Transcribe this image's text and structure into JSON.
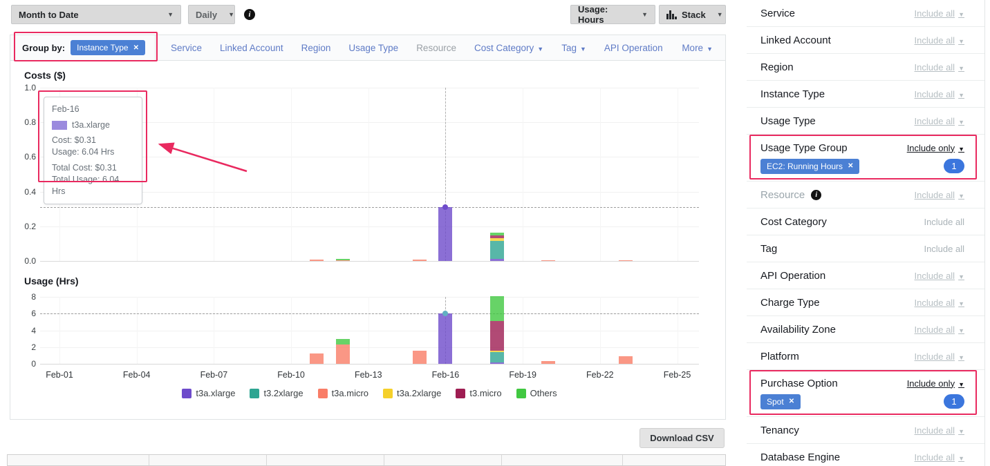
{
  "toolbar": {
    "date_range": "Month to Date",
    "granularity": "Daily",
    "metric": "Usage: Hours",
    "chart_style": "Stack"
  },
  "group_by": {
    "label": "Group by:",
    "active_tag": "Instance Type",
    "tabs": [
      {
        "label": "Service",
        "muted": false,
        "caret": false
      },
      {
        "label": "Linked Account",
        "muted": false,
        "caret": false
      },
      {
        "label": "Region",
        "muted": false,
        "caret": false
      },
      {
        "label": "Usage Type",
        "muted": false,
        "caret": false
      },
      {
        "label": "Resource",
        "muted": true,
        "caret": false
      },
      {
        "label": "Cost Category",
        "muted": false,
        "caret": true
      },
      {
        "label": "Tag",
        "muted": false,
        "caret": true
      },
      {
        "label": "API Operation",
        "muted": false,
        "caret": false
      },
      {
        "label": "More",
        "muted": false,
        "caret": true,
        "last": true
      }
    ]
  },
  "chart_data": [
    {
      "type": "bar",
      "stacked": true,
      "title": "Costs ($)",
      "ylabel": "Costs ($)",
      "ylim": [
        0,
        1.0
      ],
      "ytick_labels": [
        "0.0",
        "0.2",
        "0.4",
        "0.6",
        "0.8",
        "1.0"
      ],
      "x": [
        "Feb-11",
        "Feb-12",
        "Feb-15",
        "Feb-16",
        "Feb-18",
        "Feb-20",
        "Feb-23"
      ],
      "xticks": [
        "Feb-01",
        "Feb-04",
        "Feb-07",
        "Feb-10",
        "Feb-13",
        "Feb-16",
        "Feb-19",
        "Feb-22",
        "Feb-25"
      ],
      "grid": true,
      "legend_position": "bottom",
      "series": [
        {
          "name": "t3a.xlarge",
          "color": "#6e4bcb",
          "values": [
            0,
            0,
            0,
            0.31,
            0.012,
            0,
            0
          ]
        },
        {
          "name": "t3.2xlarge",
          "color": "#2ea592",
          "values": [
            0,
            0,
            0,
            0,
            0.105,
            0,
            0
          ]
        },
        {
          "name": "t3a.micro",
          "color": "#f97d67",
          "values": [
            0.008,
            0.006,
            0.008,
            0,
            0,
            0.005,
            0.006
          ]
        },
        {
          "name": "t3a.2xlarge",
          "color": "#f5d02a",
          "values": [
            0,
            0,
            0,
            0,
            0.014,
            0,
            0
          ]
        },
        {
          "name": "t3.micro",
          "color": "#9e1d52",
          "values": [
            0,
            0,
            0,
            0,
            0.016,
            0,
            0
          ]
        },
        {
          "name": "Others",
          "color": "#41c841",
          "values": [
            0,
            0.006,
            0,
            0,
            0.015,
            0,
            0
          ]
        }
      ],
      "crosshair": {
        "date": "Feb-16",
        "value": 0.31,
        "dot_color": "#6e4bcb"
      }
    },
    {
      "type": "bar",
      "stacked": true,
      "title": "Usage (Hrs)",
      "ylabel": "Usage (Hrs)",
      "ylim": [
        0,
        8
      ],
      "ytick_labels": [
        "0",
        "2",
        "4",
        "6",
        "8"
      ],
      "x": [
        "Feb-11",
        "Feb-12",
        "Feb-15",
        "Feb-16",
        "Feb-18",
        "Feb-20",
        "Feb-23"
      ],
      "xticks": [
        "Feb-01",
        "Feb-04",
        "Feb-07",
        "Feb-10",
        "Feb-13",
        "Feb-16",
        "Feb-19",
        "Feb-22",
        "Feb-25"
      ],
      "grid": true,
      "series": [
        {
          "name": "t3a.xlarge",
          "color": "#6e4bcb",
          "values": [
            0,
            0,
            0,
            6.04,
            0.2,
            0,
            0
          ]
        },
        {
          "name": "t3.2xlarge",
          "color": "#2ea592",
          "values": [
            0,
            0,
            0,
            0,
            1.2,
            0,
            0
          ]
        },
        {
          "name": "t3a.micro",
          "color": "#f97d67",
          "values": [
            1.2,
            2.3,
            1.6,
            0,
            0,
            0.3,
            0.9
          ]
        },
        {
          "name": "t3a.2xlarge",
          "color": "#f5d02a",
          "values": [
            0,
            0,
            0,
            0,
            0.2,
            0,
            0
          ]
        },
        {
          "name": "t3.micro",
          "color": "#9e1d52",
          "values": [
            0,
            0,
            0,
            0,
            3.5,
            0,
            0
          ]
        },
        {
          "name": "Others",
          "color": "#41c841",
          "values": [
            0,
            0.65,
            0,
            0,
            3.0,
            0,
            0
          ]
        }
      ],
      "crosshair": {
        "date": "Feb-16",
        "value": 6.04,
        "dot_color": "#62b0c2"
      }
    }
  ],
  "tooltip": {
    "date": "Feb-16",
    "series": "t3a.xlarge",
    "swatch_color": "#9b8ade",
    "cost_line": "Cost: $0.31",
    "usage_line": "Usage: 6.04 Hrs",
    "total_cost_line": "Total Cost: $0.31",
    "total_usage_line": "Total Usage: 6.04 Hrs"
  },
  "download_label": "Download CSV",
  "sidebar": {
    "filters": [
      {
        "label": "Service",
        "action": "Include all",
        "caret": true,
        "style": "gray"
      },
      {
        "label": "Linked Account",
        "action": "Include all",
        "caret": true,
        "style": "gray"
      },
      {
        "label": "Region",
        "action": "Include all",
        "caret": true,
        "style": "gray"
      },
      {
        "label": "Instance Type",
        "action": "Include all",
        "caret": true,
        "style": "gray"
      },
      {
        "label": "Usage Type",
        "action": "Include all",
        "caret": true,
        "style": "gray"
      },
      {
        "label": "Usage Type Group",
        "action": "Include only",
        "caret": true,
        "style": "dark",
        "tag": "EC2: Running Hours",
        "count": "1",
        "highlight": true
      },
      {
        "label": "Resource",
        "action": "Include all",
        "caret": true,
        "style": "gray",
        "label_muted": true,
        "info": true
      },
      {
        "label": "Cost Category",
        "action": "Include all",
        "caret": false,
        "style": "plain"
      },
      {
        "label": "Tag",
        "action": "Include all",
        "caret": false,
        "style": "plain"
      },
      {
        "label": "API Operation",
        "action": "Include all",
        "caret": true,
        "style": "gray"
      },
      {
        "label": "Charge Type",
        "action": "Include all",
        "caret": true,
        "style": "gray"
      },
      {
        "label": "Availability Zone",
        "action": "Include all",
        "caret": true,
        "style": "gray"
      },
      {
        "label": "Platform",
        "action": "Include all",
        "caret": true,
        "style": "gray"
      },
      {
        "label": "Purchase Option",
        "action": "Include only",
        "caret": true,
        "style": "dark",
        "tag": "Spot",
        "count": "1",
        "highlight": true
      },
      {
        "label": "Tenancy",
        "action": "Include all",
        "caret": true,
        "style": "gray"
      },
      {
        "label": "Database Engine",
        "action": "Include all",
        "caret": true,
        "style": "gray"
      }
    ]
  },
  "colors": {
    "annotation": "#e9295f",
    "tag_blue": "#4b80d4",
    "badge_blue": "#3b76dd",
    "tab_blue": "#5f7bc6"
  }
}
